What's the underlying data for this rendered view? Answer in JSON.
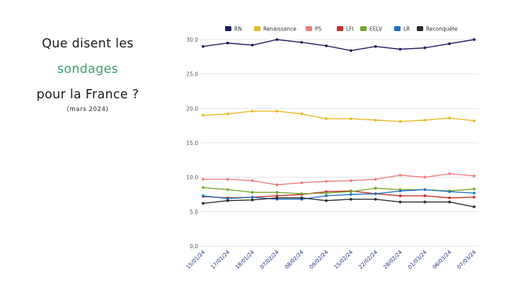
{
  "title": {
    "line1": "Que disent les",
    "line2": "sondages",
    "line3": "pour la France ?",
    "subtitle": "(mars 2024)"
  },
  "chart_data": {
    "type": "line",
    "x": [
      "15/01/24",
      "17/01/24",
      "18/01/24",
      "07/02/24",
      "08/02/24",
      "09/02/24",
      "15/02/24",
      "22/02/24",
      "28/02/24",
      "01/03/24",
      "06/03/24",
      "07/03/24"
    ],
    "y_ticks": [
      "0.0",
      "5.0",
      "10.0",
      "15.0",
      "20.0",
      "25.0",
      "30.0"
    ],
    "ylim": [
      0,
      30
    ],
    "grid": true,
    "legend_position": "top",
    "series": [
      {
        "name": "RN",
        "color": "#1a1a5e",
        "values": [
          29.0,
          29.5,
          29.2,
          30.0,
          29.6,
          29.1,
          28.4,
          29.0,
          28.6,
          28.8,
          29.4,
          30.0
        ]
      },
      {
        "name": "Renaissance",
        "color": "#e8b923",
        "values": [
          19.0,
          19.2,
          19.6,
          19.6,
          19.2,
          18.5,
          18.5,
          18.3,
          18.1,
          18.3,
          18.6,
          18.2
        ]
      },
      {
        "name": "PS",
        "color": "#f07c7c",
        "values": [
          9.7,
          9.7,
          9.5,
          8.9,
          9.2,
          9.4,
          9.5,
          9.7,
          10.3,
          10.0,
          10.5,
          10.2
        ]
      },
      {
        "name": "LFI",
        "color": "#c8302a",
        "values": [
          7.2,
          7.0,
          7.1,
          7.3,
          7.5,
          7.9,
          8.0,
          7.6,
          7.3,
          7.3,
          7.0,
          7.1
        ]
      },
      {
        "name": "EELV",
        "color": "#74a82c",
        "values": [
          8.5,
          8.2,
          7.8,
          7.8,
          7.6,
          7.7,
          7.9,
          8.4,
          8.2,
          8.2,
          8.0,
          8.3
        ]
      },
      {
        "name": "LR",
        "color": "#2070c8",
        "values": [
          7.3,
          6.9,
          7.1,
          6.8,
          6.8,
          7.3,
          7.5,
          7.6,
          8.0,
          8.2,
          7.9,
          7.7
        ]
      },
      {
        "name": "Reconquête",
        "color": "#2a2a2a",
        "values": [
          6.2,
          6.6,
          6.7,
          7.0,
          7.0,
          6.6,
          6.8,
          6.8,
          6.4,
          6.4,
          6.4,
          5.7
        ]
      }
    ]
  }
}
